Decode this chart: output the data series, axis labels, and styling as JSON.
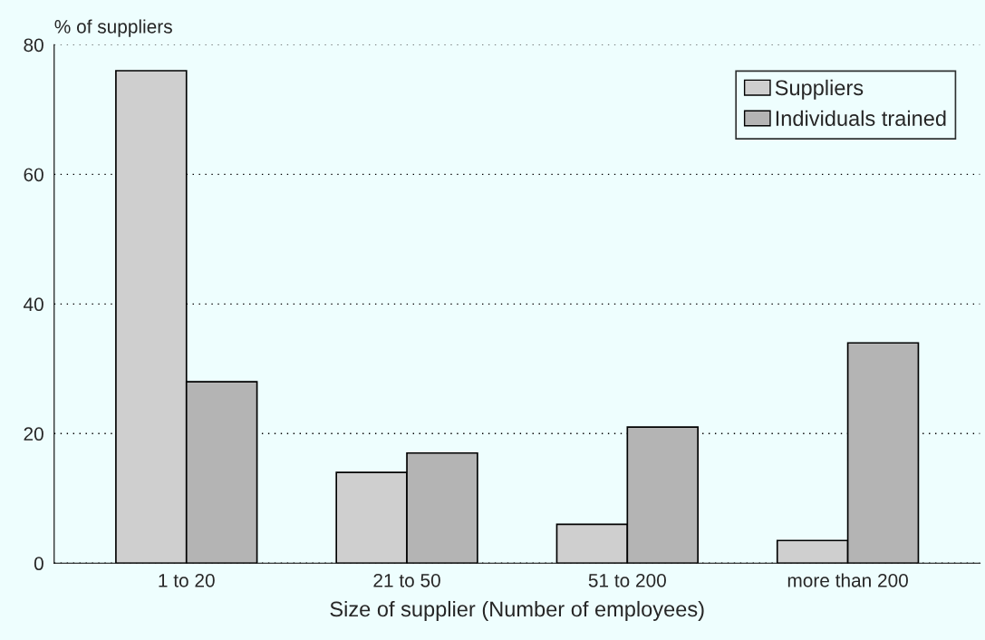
{
  "chart_data": {
    "type": "bar",
    "ylabel": "% of suppliers",
    "xlabel": "Size of supplier (Number of employees)",
    "categories": [
      "1 to 20",
      "21 to 50",
      "51 to 200",
      "more than 200"
    ],
    "series": [
      {
        "name": "Suppliers",
        "color": "#cfcfcf",
        "values": [
          76,
          14,
          6,
          3.5
        ]
      },
      {
        "name": "Individuals trained",
        "color": "#b4b4b4",
        "values": [
          28,
          17,
          21,
          34
        ]
      }
    ],
    "ylim": [
      0,
      80
    ],
    "yticks": [
      0,
      20,
      40,
      60,
      80
    ],
    "grid": "y",
    "legend": "top right"
  }
}
